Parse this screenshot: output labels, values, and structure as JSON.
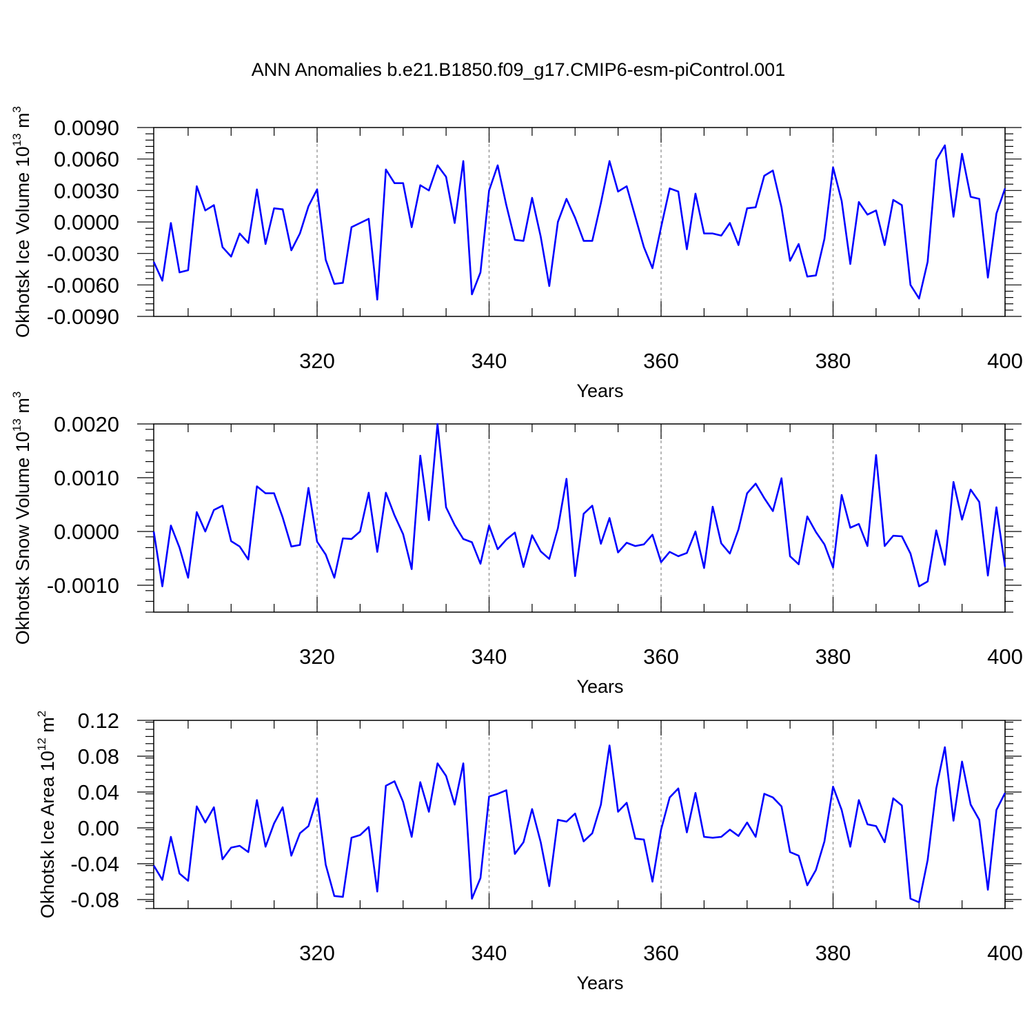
{
  "title": "ANN Anomalies b.e21.B1850.f09_g17.CMIP6-esm-piControl.001",
  "line_color": "#0000ff",
  "chart_data": [
    {
      "type": "line",
      "title": "",
      "ylabel": "Okhotsk Ice Volume 10",
      "ylabel_exp": "13",
      "ylabel_unit": " m",
      "ylabel_unit_exp": "3",
      "xlabel": "Years",
      "xlim": [
        301,
        400
      ],
      "ylim": [
        -0.009,
        0.009
      ],
      "xticks": [
        320,
        340,
        360,
        380,
        400
      ],
      "xtick_labels": [
        "320",
        "340",
        "360",
        "380",
        "400"
      ],
      "yticks": [
        -0.009,
        -0.006,
        -0.003,
        0.0,
        0.003,
        0.006,
        0.009
      ],
      "ytick_labels": [
        "-0.0090",
        "-0.0060",
        "-0.0030",
        "0.0000",
        "0.0030",
        "0.0060",
        "0.0090"
      ],
      "grid": "dashed vertical at major x ticks",
      "series": [
        {
          "x_start": 301,
          "values": [
            -0.0038,
            -0.0056,
            -0.0001,
            -0.0048,
            -0.0046,
            0.0034,
            0.0011,
            0.0016,
            -0.0024,
            -0.0033,
            -0.0011,
            -0.002,
            0.0031,
            -0.0021,
            0.0013,
            0.0012,
            -0.0027,
            -0.0011,
            0.0015,
            0.0031,
            -0.0036,
            -0.0059,
            -0.0058,
            -0.0005,
            -0.0001,
            0.0003,
            -0.0074,
            0.005,
            0.0037,
            0.0037,
            -0.0005,
            0.0035,
            0.003,
            0.0054,
            0.0043,
            -0.0001,
            0.0058,
            -0.0069,
            -0.0048,
            0.003,
            0.0054,
            0.0016,
            -0.0017,
            -0.0018,
            0.0023,
            -0.0014,
            -0.0061,
            0.0,
            0.0022,
            0.0004,
            -0.0018,
            -0.0018,
            0.0018,
            0.0058,
            0.0029,
            0.0034,
            0.0005,
            -0.0024,
            -0.0044,
            -0.0005,
            0.0032,
            0.0029,
            -0.0026,
            0.0027,
            -0.0011,
            -0.0011,
            -0.0013,
            -0.0001,
            -0.0022,
            0.0013,
            0.0014,
            0.0044,
            0.0049,
            0.0014,
            -0.0037,
            -0.0021,
            -0.0052,
            -0.0051,
            -0.0016,
            0.0052,
            0.002,
            -0.004,
            0.0019,
            0.0007,
            0.0011,
            -0.0022,
            0.0021,
            0.0016,
            -0.006,
            -0.0073,
            -0.0038,
            0.0059,
            0.0073,
            0.0005,
            0.0065,
            0.0024,
            0.0022,
            -0.0053,
            0.0008,
            0.0032
          ]
        }
      ]
    },
    {
      "type": "line",
      "title": "",
      "ylabel": "Okhotsk Snow Volume 10",
      "ylabel_exp": "13",
      "ylabel_unit": " m",
      "ylabel_unit_exp": "3",
      "xlabel": "Years",
      "xlim": [
        301,
        400
      ],
      "ylim": [
        -0.0015,
        0.002
      ],
      "xticks": [
        320,
        340,
        360,
        380,
        400
      ],
      "xtick_labels": [
        "320",
        "340",
        "360",
        "380",
        "400"
      ],
      "yticks": [
        -0.001,
        0.0,
        0.001,
        0.002
      ],
      "ytick_labels": [
        "-0.0010",
        "0.0000",
        "0.0010",
        "0.0020"
      ],
      "grid": "dashed vertical at major x ticks",
      "series": [
        {
          "x_start": 301,
          "values": [
            0.0,
            -0.00102,
            0.00011,
            -0.0003,
            -0.00086,
            0.00036,
            0.0,
            0.0004,
            0.00048,
            -0.00018,
            -0.00028,
            -0.00052,
            0.00084,
            0.00071,
            0.00071,
            0.00026,
            -0.00028,
            -0.00025,
            0.00081,
            -0.00019,
            -0.00043,
            -0.00086,
            -0.00013,
            -0.00014,
            0.0,
            0.00072,
            -0.00038,
            0.00072,
            0.0003,
            -5e-05,
            -0.0007,
            0.00141,
            0.00021,
            0.002,
            0.00045,
            0.00012,
            -0.00014,
            -0.0002,
            -0.0006,
            0.00011,
            -0.00033,
            -0.00015,
            -2e-05,
            -0.00066,
            -7e-05,
            -0.00037,
            -0.00051,
            6e-05,
            0.00098,
            -0.00083,
            0.00033,
            0.00048,
            -0.00023,
            0.00025,
            -0.00039,
            -0.00021,
            -0.00027,
            -0.00024,
            -6e-05,
            -0.00057,
            -0.00038,
            -0.00046,
            -0.0004,
            0.0,
            -0.00068,
            0.00046,
            -0.00022,
            -0.00041,
            4e-05,
            0.00071,
            0.00089,
            0.00062,
            0.00038,
            0.00099,
            -0.00046,
            -0.00061,
            0.00028,
            -1e-05,
            -0.00024,
            -0.00067,
            0.00068,
            7e-05,
            0.00014,
            -0.00027,
            0.00142,
            -0.00027,
            -8e-05,
            -9e-05,
            -0.00041,
            -0.00102,
            -0.00093,
            2e-05,
            -0.00062,
            0.00092,
            0.00022,
            0.00078,
            0.00055,
            -0.00082,
            0.00045,
            -0.00066
          ]
        }
      ]
    },
    {
      "type": "line",
      "title": "",
      "ylabel": "Okhotsk Ice Area 10",
      "ylabel_exp": "12",
      "ylabel_unit": " m",
      "ylabel_unit_exp": "2",
      "xlabel": "Years",
      "xlim": [
        301,
        400
      ],
      "ylim": [
        -0.09,
        0.12
      ],
      "xticks": [
        320,
        340,
        360,
        380,
        400
      ],
      "xtick_labels": [
        "320",
        "340",
        "360",
        "380",
        "400"
      ],
      "yticks": [
        -0.08,
        -0.04,
        0.0,
        0.04,
        0.08,
        0.12
      ],
      "ytick_labels": [
        "-0.08",
        "-0.04",
        "0.00",
        "0.04",
        "0.08",
        "0.12"
      ],
      "grid": "dashed vertical at major x ticks",
      "series": [
        {
          "x_start": 301,
          "values": [
            -0.042,
            -0.058,
            -0.01,
            -0.051,
            -0.059,
            0.024,
            0.006,
            0.023,
            -0.035,
            -0.022,
            -0.02,
            -0.027,
            0.031,
            -0.021,
            0.005,
            0.023,
            -0.031,
            -0.006,
            0.002,
            0.033,
            -0.041,
            -0.076,
            -0.077,
            -0.011,
            -0.008,
            0.001,
            -0.071,
            0.047,
            0.052,
            0.029,
            -0.01,
            0.051,
            0.018,
            0.072,
            0.058,
            0.026,
            0.072,
            -0.079,
            -0.056,
            0.035,
            0.038,
            0.042,
            -0.029,
            -0.016,
            0.021,
            -0.016,
            -0.065,
            0.009,
            0.007,
            0.016,
            -0.015,
            -0.006,
            0.026,
            0.092,
            0.018,
            0.028,
            -0.012,
            -0.013,
            -0.06,
            -0.002,
            0.034,
            0.044,
            -0.005,
            0.039,
            -0.01,
            -0.011,
            -0.01,
            -0.002,
            -0.009,
            0.006,
            -0.01,
            0.038,
            0.034,
            0.024,
            -0.027,
            -0.031,
            -0.064,
            -0.047,
            -0.015,
            0.046,
            0.02,
            -0.021,
            0.031,
            0.004,
            0.002,
            -0.016,
            0.033,
            0.025,
            -0.079,
            -0.083,
            -0.036,
            0.044,
            0.09,
            0.008,
            0.074,
            0.026,
            0.009,
            -0.069,
            0.02,
            0.039
          ]
        }
      ]
    }
  ]
}
